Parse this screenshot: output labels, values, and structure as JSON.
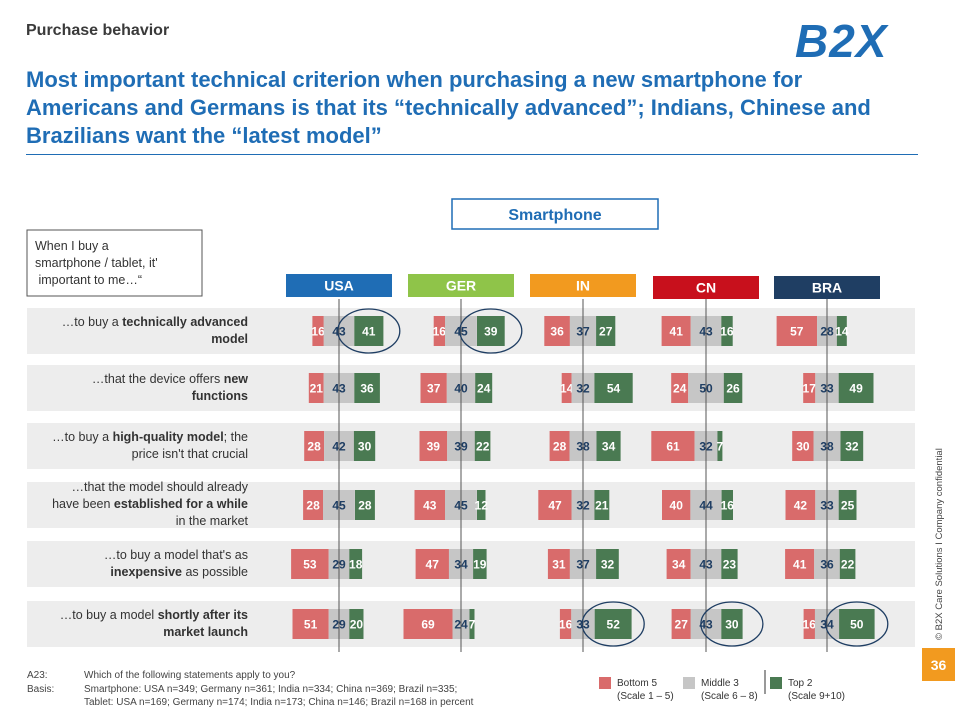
{
  "header": {
    "section": "Purchase behavior",
    "logo": "B2X",
    "headline": "Most important technical criterion when purchasing a new smartphone for Americans and Germans is that its “technically advanced”; Indians, Chinese and Brazilians want the “latest model”"
  },
  "colors": {
    "brand_blue": "#1f6db5",
    "bottom": "#d96b6b",
    "middle": "#c6c6c6",
    "top": "#4a7a52",
    "row_band": "#ededed",
    "badge": "#f29a1f"
  },
  "chart_data": {
    "type": "bar",
    "subtype": "diverging stacked bar",
    "device_label": "Smartphone",
    "intro": "When I buy a smartphone / tablet, it's important to me…“",
    "countries": [
      {
        "name": "USA",
        "color": "#1f6db5"
      },
      {
        "name": "GER",
        "color": "#8fc449"
      },
      {
        "name": "IN",
        "color": "#f29a1f"
      },
      {
        "name": "CN",
        "color": "#c8101c"
      },
      {
        "name": "BRA",
        "color": "#1f3e63"
      }
    ],
    "statements": [
      {
        "pre": "…to buy a ",
        "bold": "technically advanced",
        "post": "",
        "line2_bold": "model",
        "line2_post": "",
        "line3": ""
      },
      {
        "pre": "…that the device offers ",
        "bold": "new",
        "post": "",
        "line2_bold": "functions",
        "line2_post": "",
        "line3": ""
      },
      {
        "pre": "…to buy a ",
        "bold": "high-quality model",
        "post": "; the",
        "line2_bold": "",
        "line2_post": "price isn't that crucial",
        "line3": ""
      },
      {
        "pre": "…that the model should already",
        "bold": "",
        "post": "",
        "line2_pre": "have been ",
        "line2_bold": "established for a while",
        "line2_post": "",
        "line3": "in the market"
      },
      {
        "pre": "…to buy a model that's as",
        "bold": "",
        "post": "",
        "line2_bold": "inexpensive",
        "line2_post": " as possible",
        "line3": ""
      },
      {
        "pre": "…to buy a model ",
        "bold": "shortly after its",
        "post": "",
        "line2_bold": "market launch",
        "line2_post": "",
        "line3": ""
      }
    ],
    "series": [
      {
        "name": "Bottom 5",
        "scale": "(Scale 1 – 5)",
        "values": [
          [
            16,
            16,
            36,
            41,
            57
          ],
          [
            21,
            37,
            14,
            24,
            17
          ],
          [
            28,
            39,
            28,
            61,
            30
          ],
          [
            28,
            43,
            47,
            40,
            42
          ],
          [
            53,
            47,
            31,
            34,
            41
          ],
          [
            51,
            69,
            16,
            27,
            16
          ]
        ]
      },
      {
        "name": "Middle 3",
        "scale": "(Scale 6 – 8)",
        "values": [
          [
            43,
            45,
            37,
            43,
            28
          ],
          [
            43,
            40,
            32,
            50,
            33
          ],
          [
            42,
            39,
            38,
            32,
            38
          ],
          [
            45,
            45,
            32,
            44,
            33
          ],
          [
            29,
            34,
            37,
            43,
            36
          ],
          [
            29,
            24,
            33,
            43,
            34
          ]
        ]
      },
      {
        "name": "Top 2",
        "scale": "(Scale 9+10)",
        "values": [
          [
            41,
            39,
            27,
            16,
            14
          ],
          [
            36,
            24,
            54,
            26,
            49
          ],
          [
            30,
            22,
            34,
            7,
            32
          ],
          [
            28,
            12,
            21,
            16,
            25
          ],
          [
            18,
            19,
            32,
            23,
            22
          ],
          [
            20,
            7,
            52,
            30,
            50
          ]
        ]
      }
    ],
    "highlighted": [
      [
        0,
        0
      ],
      [
        0,
        1
      ],
      [
        5,
        2
      ],
      [
        5,
        3
      ],
      [
        5,
        4
      ]
    ],
    "units": "percent"
  },
  "footer": {
    "code": "A23:",
    "basis_label": "Basis:",
    "question": "Which of the following statements apply to you?",
    "basis_line1": "Smartphone: USA n=349; Germany n=361; India n=334; China n=369; Brazil n=335;",
    "basis_line2": "Tablet: USA n=169; Germany n=174; India n=173; China n=146; Brazil n=168 in percent",
    "side_note": "© B2X Care Solutions  I  Company confidential",
    "page": "36"
  }
}
